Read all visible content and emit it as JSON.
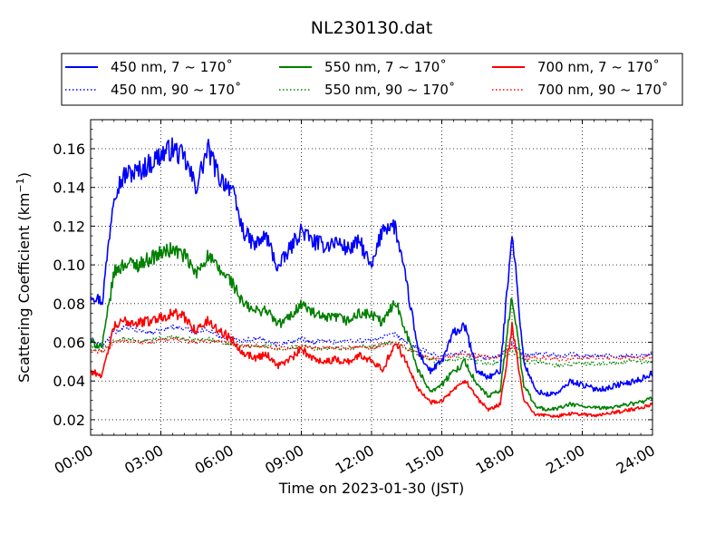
{
  "chart_data": {
    "type": "line",
    "title": "NL230130.dat",
    "xlabel": "Time on 2023-01-30 (JST)",
    "ylabel_main": "Scattering Coefficient (km",
    "ylabel_sup": "−1",
    "ylabel_end": ")",
    "xlim": [
      "00:00",
      "24:00"
    ],
    "ylim": [
      0.012,
      0.175
    ],
    "grid": true,
    "legend_position": "top",
    "x_ticks": [
      "00:00",
      "03:00",
      "06:00",
      "09:00",
      "12:00",
      "15:00",
      "18:00",
      "21:00",
      "24:00"
    ],
    "y_ticks": [
      "0.02",
      "0.04",
      "0.06",
      "0.08",
      "0.10",
      "0.12",
      "0.14",
      "0.16"
    ],
    "x_tick_hours": [
      0,
      3,
      6,
      9,
      12,
      15,
      18,
      21,
      24
    ],
    "y_tick_values": [
      0.02,
      0.04,
      0.06,
      0.08,
      0.1,
      0.12,
      0.14,
      0.16
    ],
    "x_hours": [
      0,
      0.5,
      1,
      1.5,
      2,
      2.5,
      3,
      3.5,
      4,
      4.5,
      5,
      5.5,
      6,
      6.5,
      7,
      7.5,
      8,
      8.5,
      9,
      9.5,
      10,
      10.5,
      11,
      11.5,
      12,
      12.5,
      13,
      13.5,
      14,
      14.5,
      15,
      15.5,
      16,
      16.5,
      17,
      17.5,
      18,
      18.5,
      19,
      19.5,
      20,
      20.5,
      21,
      21.5,
      22,
      22.5,
      23,
      23.5,
      24
    ],
    "series": [
      {
        "name": "450 nm, 7 ~ 170˚",
        "color": "#0000ff",
        "style": "solid",
        "values": [
          0.085,
          0.081,
          0.138,
          0.147,
          0.148,
          0.152,
          0.157,
          0.16,
          0.155,
          0.14,
          0.16,
          0.145,
          0.14,
          0.118,
          0.11,
          0.115,
          0.098,
          0.108,
          0.118,
          0.112,
          0.11,
          0.112,
          0.108,
          0.112,
          0.098,
          0.12,
          0.12,
          0.09,
          0.055,
          0.045,
          0.05,
          0.065,
          0.068,
          0.045,
          0.042,
          0.045,
          0.118,
          0.05,
          0.035,
          0.033,
          0.034,
          0.04,
          0.038,
          0.036,
          0.036,
          0.038,
          0.039,
          0.041,
          0.044
        ]
      },
      {
        "name": "450 nm, 90 ~ 170˚",
        "color": "#0000ff",
        "style": "dotted",
        "values": [
          0.062,
          0.058,
          0.065,
          0.068,
          0.066,
          0.065,
          0.066,
          0.068,
          0.067,
          0.065,
          0.067,
          0.063,
          0.062,
          0.061,
          0.062,
          0.061,
          0.059,
          0.06,
          0.062,
          0.06,
          0.061,
          0.06,
          0.061,
          0.061,
          0.061,
          0.063,
          0.064,
          0.06,
          0.057,
          0.054,
          0.053,
          0.054,
          0.055,
          0.052,
          0.052,
          0.053,
          0.06,
          0.053,
          0.054,
          0.054,
          0.053,
          0.054,
          0.053,
          0.053,
          0.053,
          0.053,
          0.053,
          0.053,
          0.054
        ]
      },
      {
        "name": "550 nm, 7 ~ 170˚",
        "color": "#008000",
        "style": "solid",
        "values": [
          0.06,
          0.058,
          0.096,
          0.101,
          0.1,
          0.103,
          0.106,
          0.108,
          0.105,
          0.095,
          0.105,
          0.097,
          0.092,
          0.08,
          0.076,
          0.077,
          0.069,
          0.073,
          0.08,
          0.075,
          0.072,
          0.073,
          0.071,
          0.075,
          0.074,
          0.07,
          0.082,
          0.065,
          0.045,
          0.035,
          0.038,
          0.045,
          0.05,
          0.038,
          0.032,
          0.035,
          0.085,
          0.038,
          0.027,
          0.025,
          0.026,
          0.028,
          0.027,
          0.026,
          0.026,
          0.027,
          0.028,
          0.029,
          0.031
        ]
      },
      {
        "name": "550 nm, 90 ~ 170˚",
        "color": "#008000",
        "style": "dotted",
        "values": [
          0.058,
          0.056,
          0.061,
          0.062,
          0.061,
          0.061,
          0.062,
          0.063,
          0.062,
          0.061,
          0.062,
          0.06,
          0.059,
          0.058,
          0.058,
          0.058,
          0.057,
          0.057,
          0.058,
          0.057,
          0.057,
          0.057,
          0.057,
          0.058,
          0.057,
          0.059,
          0.06,
          0.057,
          0.054,
          0.051,
          0.05,
          0.051,
          0.052,
          0.05,
          0.049,
          0.05,
          0.056,
          0.05,
          0.05,
          0.049,
          0.048,
          0.049,
          0.049,
          0.049,
          0.049,
          0.049,
          0.05,
          0.05,
          0.05
        ]
      },
      {
        "name": "700 nm, 7 ~ 170˚",
        "color": "#ff0000",
        "style": "solid",
        "values": [
          0.045,
          0.043,
          0.068,
          0.071,
          0.07,
          0.071,
          0.073,
          0.075,
          0.073,
          0.066,
          0.071,
          0.066,
          0.062,
          0.055,
          0.052,
          0.054,
          0.048,
          0.051,
          0.056,
          0.052,
          0.05,
          0.051,
          0.05,
          0.053,
          0.051,
          0.046,
          0.06,
          0.05,
          0.036,
          0.029,
          0.03,
          0.035,
          0.04,
          0.031,
          0.025,
          0.028,
          0.068,
          0.03,
          0.023,
          0.022,
          0.022,
          0.023,
          0.023,
          0.022,
          0.023,
          0.024,
          0.025,
          0.026,
          0.028
        ]
      },
      {
        "name": "700 nm, 90 ~ 170˚",
        "color": "#ff0000",
        "style": "dotted",
        "values": [
          0.056,
          0.055,
          0.06,
          0.061,
          0.06,
          0.06,
          0.061,
          0.062,
          0.061,
          0.06,
          0.061,
          0.06,
          0.059,
          0.058,
          0.058,
          0.058,
          0.057,
          0.057,
          0.058,
          0.057,
          0.057,
          0.057,
          0.057,
          0.058,
          0.057,
          0.059,
          0.06,
          0.057,
          0.054,
          0.052,
          0.052,
          0.053,
          0.054,
          0.053,
          0.052,
          0.053,
          0.058,
          0.052,
          0.052,
          0.052,
          0.051,
          0.052,
          0.052,
          0.052,
          0.052,
          0.052,
          0.052,
          0.052,
          0.053
        ]
      }
    ]
  }
}
